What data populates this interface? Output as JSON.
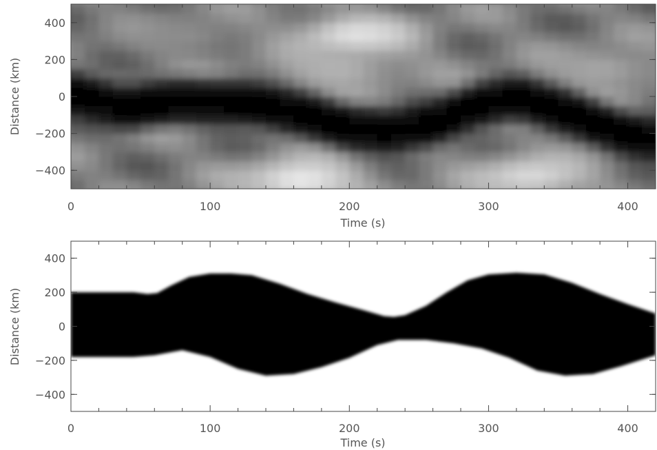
{
  "chart_data": [
    {
      "type": "heatmap",
      "colormap": "grayscale",
      "xlabel": "Time (s)",
      "ylabel": "Distance (km)",
      "xlim": [
        0,
        420
      ],
      "ylim": [
        -500,
        500
      ],
      "x_ticks": [
        0,
        100,
        200,
        300,
        400
      ],
      "y_ticks": [
        -400,
        -200,
        0,
        200,
        400
      ],
      "x_tick_labels": [
        "0",
        "100",
        "200",
        "300",
        "400"
      ],
      "y_tick_labels": [
        "−400",
        "−200",
        "0",
        "200",
        "400"
      ],
      "x_step": 10,
      "y_step": 50,
      "dark_band_center": [
        [
          0,
          20
        ],
        [
          40,
          -60
        ],
        [
          80,
          -20
        ],
        [
          130,
          -40
        ],
        [
          170,
          -100
        ],
        [
          200,
          -170
        ],
        [
          230,
          -190
        ],
        [
          260,
          -150
        ],
        [
          290,
          -50
        ],
        [
          320,
          -10
        ],
        [
          360,
          -90
        ],
        [
          400,
          -210
        ],
        [
          420,
          -230
        ]
      ],
      "dark_band_halfwidth_km": 130,
      "bright_regions": [
        {
          "t": 205,
          "d": 330,
          "level": 0.9
        },
        {
          "t": 190,
          "d": 150,
          "level": 0.7
        },
        {
          "t": 165,
          "d": -450,
          "level": 0.92
        },
        {
          "t": 330,
          "d": -430,
          "level": 0.85
        },
        {
          "t": 80,
          "d": 330,
          "level": 0.55
        },
        {
          "t": 380,
          "d": 150,
          "level": 0.65
        }
      ]
    },
    {
      "type": "area",
      "xlabel": "Time (s)",
      "ylabel": "Distance (km)",
      "xlim": [
        0,
        420
      ],
      "ylim": [
        -500,
        500
      ],
      "x_ticks": [
        0,
        100,
        200,
        300,
        400
      ],
      "y_ticks": [
        -400,
        -200,
        0,
        200,
        400
      ],
      "x_tick_labels": [
        "0",
        "100",
        "200",
        "300",
        "400"
      ],
      "y_tick_labels": [
        "−400",
        "−200",
        "0",
        "200",
        "400"
      ],
      "upper_boundary": {
        "x": [
          0,
          20,
          45,
          55,
          62,
          72,
          85,
          100,
          115,
          130,
          150,
          170,
          190,
          210,
          225,
          232,
          240,
          255,
          270,
          285,
          300,
          320,
          340,
          360,
          380,
          400,
          420
        ],
        "y": [
          200,
          200,
          200,
          190,
          195,
          240,
          290,
          310,
          310,
          300,
          250,
          190,
          140,
          95,
          60,
          55,
          65,
          120,
          200,
          270,
          305,
          315,
          305,
          255,
          190,
          130,
          75
        ]
      },
      "lower_boundary": {
        "x": [
          0,
          20,
          45,
          60,
          80,
          100,
          120,
          140,
          160,
          180,
          200,
          220,
          235,
          255,
          275,
          295,
          315,
          335,
          355,
          375,
          395,
          420
        ],
        "y": [
          -180,
          -180,
          -180,
          -170,
          -140,
          -180,
          -250,
          -290,
          -280,
          -240,
          -185,
          -110,
          -80,
          -80,
          -100,
          -130,
          -185,
          -260,
          -290,
          -280,
          -235,
          -170
        ]
      }
    }
  ]
}
